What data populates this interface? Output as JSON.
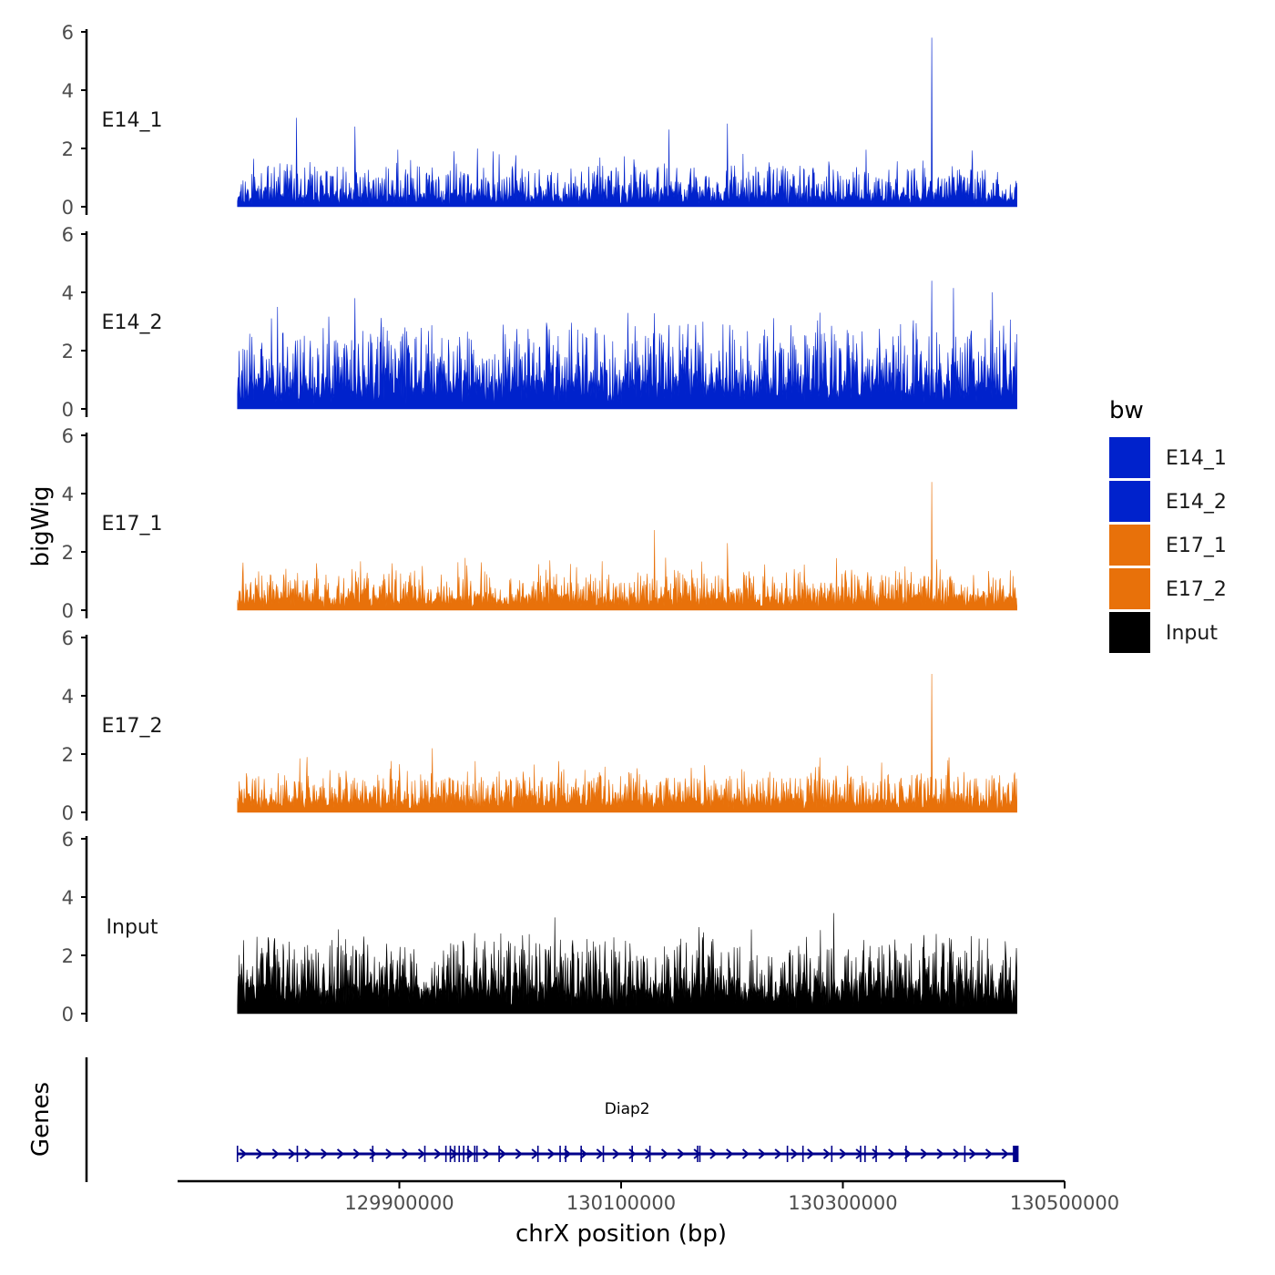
{
  "chart_data": {
    "type": "area",
    "ylabel": "bigWig",
    "xlabel": "chrX position (bp)",
    "genes_label": "Genes",
    "region": {
      "chrom": "chrX",
      "start": 129754000,
      "end": 130457000
    },
    "ylim": [
      0,
      6
    ],
    "yticks": [
      0,
      2,
      4,
      6
    ],
    "xlim": [
      129700000,
      130500000
    ],
    "xticks": [
      129900000,
      130100000,
      130300000,
      130500000
    ],
    "xtick_labels": [
      "129900000",
      "130100000",
      "130300000",
      "130500000"
    ],
    "legend": {
      "title": "bw",
      "position": "right",
      "entries": [
        {
          "label": "E14_1",
          "color": "#0022cc"
        },
        {
          "label": "E14_2",
          "color": "#0022cc"
        },
        {
          "label": "E17_1",
          "color": "#e8710a"
        },
        {
          "label": "E17_2",
          "color": "#e8710a"
        },
        {
          "label": "Input",
          "color": "#000000"
        }
      ]
    },
    "series": [
      {
        "name": "E14_1",
        "color": "#0022cc",
        "baseline": 0.35,
        "spread": 0.55,
        "spike_max": 2.0,
        "seed": 11,
        "peaks": [
          {
            "x": 129807000,
            "y": 3.05
          },
          {
            "x": 129860000,
            "y": 2.75
          },
          {
            "x": 129910000,
            "y": 1.6
          },
          {
            "x": 130143000,
            "y": 2.65
          },
          {
            "x": 130196000,
            "y": 2.85
          },
          {
            "x": 130380000,
            "y": 5.8
          }
        ]
      },
      {
        "name": "E14_2",
        "color": "#0022cc",
        "baseline": 0.85,
        "spread": 1.1,
        "spike_max": 3.3,
        "seed": 23,
        "peaks": [
          {
            "x": 129790000,
            "y": 3.5
          },
          {
            "x": 129860000,
            "y": 3.8
          },
          {
            "x": 130380000,
            "y": 4.4
          },
          {
            "x": 130400000,
            "y": 4.15
          },
          {
            "x": 130435000,
            "y": 4.0
          }
        ]
      },
      {
        "name": "E17_1",
        "color": "#e8710a",
        "baseline": 0.4,
        "spread": 0.5,
        "spike_max": 1.8,
        "seed": 37,
        "peaks": [
          {
            "x": 130130000,
            "y": 2.75
          },
          {
            "x": 130196000,
            "y": 2.3
          },
          {
            "x": 130380000,
            "y": 4.4
          }
        ]
      },
      {
        "name": "E17_2",
        "color": "#e8710a",
        "baseline": 0.4,
        "spread": 0.5,
        "spike_max": 1.9,
        "seed": 41,
        "peaks": [
          {
            "x": 129810000,
            "y": 1.85
          },
          {
            "x": 129930000,
            "y": 2.2
          },
          {
            "x": 130380000,
            "y": 4.75
          }
        ]
      },
      {
        "name": "Input",
        "color": "#000000",
        "baseline": 0.9,
        "spread": 0.95,
        "spike_max": 2.9,
        "seed": 53,
        "peaks": [
          {
            "x": 130040000,
            "y": 3.3
          },
          {
            "x": 130292000,
            "y": 3.45
          }
        ]
      }
    ],
    "genes": [
      {
        "name": "Diap2",
        "start": 129754000,
        "end": 130457000,
        "strand": "+",
        "color": "#00008b",
        "exons": [
          129754000,
          129808000,
          129876000,
          129923000,
          129942000,
          129946000,
          129950000,
          129954000,
          129958000,
          129962000,
          129968000,
          129970000,
          129990000,
          130025000,
          130045000,
          130050000,
          130064000,
          130084000,
          130110000,
          130126000,
          130169000,
          130171000,
          130250000,
          130264000,
          130290000,
          130316000,
          130320000,
          130330000,
          130357000,
          130410000,
          130454000,
          130456000
        ]
      }
    ]
  }
}
